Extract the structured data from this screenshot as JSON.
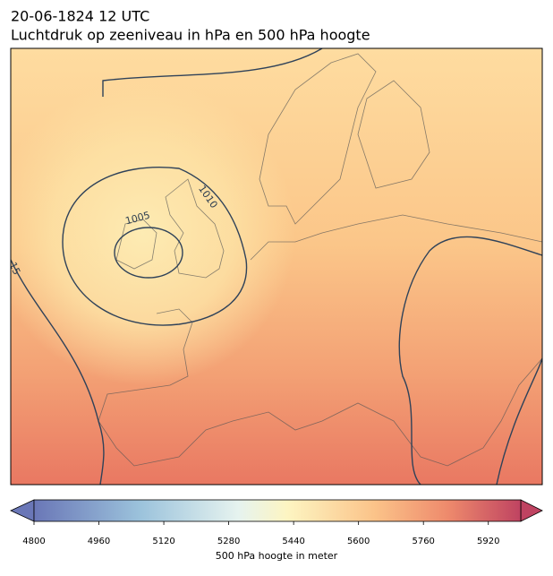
{
  "header": {
    "title": "20-06-1824 12 UTC",
    "subtitle": "Luchtdruk op zeeniveau in hPa en 500 hPa hoogte"
  },
  "map": {
    "contour_labels": [
      "1005",
      "1010",
      "15"
    ]
  },
  "colorbar": {
    "label": "500 hPa hoogte in meter",
    "lim": [
      4800,
      6000
    ],
    "ticks": [
      4800,
      4960,
      5120,
      5280,
      5440,
      5600,
      5760,
      5920
    ]
  }
}
